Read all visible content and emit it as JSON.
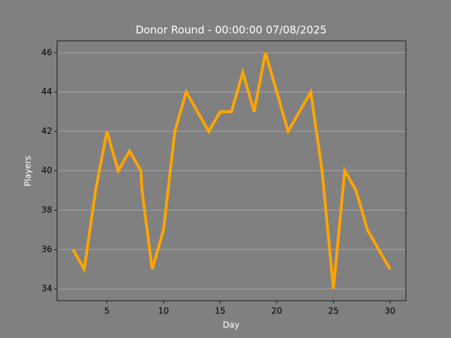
{
  "chart_data": {
    "type": "line",
    "title": "Donor Round - 00:00:00 07/08/2025",
    "xlabel": "Day",
    "ylabel": "Players",
    "x": [
      2,
      3,
      4,
      5,
      6,
      7,
      8,
      8.1,
      9,
      10,
      11,
      12,
      14,
      15,
      16,
      17,
      18,
      19,
      21,
      23,
      24,
      25,
      26,
      27,
      28,
      30
    ],
    "series": [
      {
        "name": "Players",
        "color": "#ffa500",
        "values": [
          36,
          35,
          39,
          42,
          40,
          41,
          40,
          39,
          35,
          37,
          42,
          44,
          42,
          43,
          43,
          45,
          43,
          46,
          42,
          44,
          40,
          34,
          40,
          39,
          37,
          35
        ]
      }
    ],
    "xlim": [
      0.6,
      31.4
    ],
    "ylim": [
      33.4,
      46.6
    ],
    "xticks": [
      5,
      10,
      15,
      20,
      25,
      30
    ],
    "yticks": [
      34,
      36,
      38,
      40,
      42,
      44,
      46
    ],
    "grid": true
  }
}
